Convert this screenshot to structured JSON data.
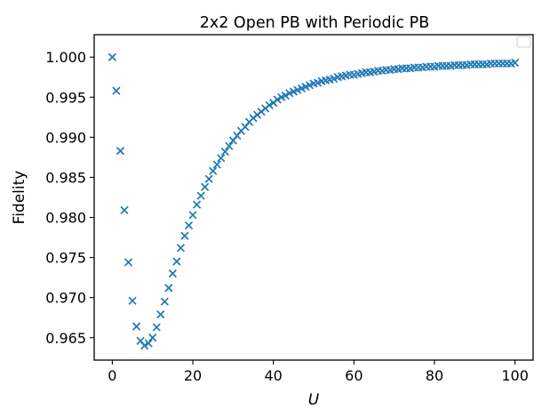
{
  "chart_data": {
    "type": "scatter",
    "title": "2x2 Open PB with Periodic PB",
    "xlabel": "U",
    "ylabel": "Fidelity",
    "xlim": [
      -4.5,
      104.5
    ],
    "ylim": [
      0.9622,
      1.0028
    ],
    "xticks": [
      0,
      20,
      40,
      60,
      80,
      100
    ],
    "xtick_labels": [
      "0",
      "20",
      "40",
      "60",
      "80",
      "100"
    ],
    "yticks": [
      0.965,
      0.97,
      0.975,
      0.98,
      0.985,
      0.99,
      0.995,
      1.0
    ],
    "ytick_labels": [
      "0.965",
      "0.970",
      "0.975",
      "0.980",
      "0.985",
      "0.990",
      "0.995",
      "1.000"
    ],
    "grid": false,
    "legend": "top-right",
    "marker": "x",
    "colors": {
      "series": "#1f77b4",
      "axes": "#000000",
      "background": "#ffffff",
      "legend_border": "#cccccc"
    },
    "series": [
      {
        "x": [
          0,
          1,
          2,
          3,
          4,
          5,
          6,
          7,
          8,
          9,
          10,
          11,
          12,
          13,
          14,
          15,
          16,
          17,
          18,
          19,
          20,
          21,
          22,
          23,
          24,
          25,
          26,
          27,
          28,
          29,
          30,
          31,
          32,
          33,
          34,
          35,
          36,
          37,
          38,
          39,
          40,
          41,
          42,
          43,
          44,
          45,
          46,
          47,
          48,
          49,
          50,
          51,
          52,
          53,
          54,
          55,
          56,
          57,
          58,
          59,
          60,
          61,
          62,
          63,
          64,
          65,
          66,
          67,
          68,
          69,
          70,
          71,
          72,
          73,
          74,
          75,
          76,
          77,
          78,
          79,
          80,
          81,
          82,
          83,
          84,
          85,
          86,
          87,
          88,
          89,
          90,
          91,
          92,
          93,
          94,
          95,
          96,
          97,
          98,
          99,
          100
        ],
        "values": [
          1.0,
          0.9958,
          0.9883,
          0.9809,
          0.9744,
          0.9696,
          0.9664,
          0.9646,
          0.964,
          0.9643,
          0.965,
          0.9663,
          0.9679,
          0.9695,
          0.9712,
          0.973,
          0.9745,
          0.9762,
          0.9777,
          0.979,
          0.9803,
          0.9816,
          0.9827,
          0.9838,
          0.9848,
          0.9858,
          0.9866,
          0.9874,
          0.9882,
          0.9889,
          0.9896,
          0.9902,
          0.9908,
          0.9913,
          0.9919,
          0.9924,
          0.9928,
          0.9932,
          0.9936,
          0.994,
          0.9943,
          0.9947,
          0.995,
          0.9952,
          0.9955,
          0.9957,
          0.9959,
          0.9961,
          0.9963,
          0.9965,
          0.9967,
          0.9968,
          0.997,
          0.9971,
          0.9972,
          0.9973,
          0.9975,
          0.9976,
          0.9977,
          0.9978,
          0.9978,
          0.9979,
          0.998,
          0.9981,
          0.9981,
          0.9982,
          0.9983,
          0.9983,
          0.9984,
          0.9984,
          0.9985,
          0.9985,
          0.9986,
          0.9986,
          0.9986,
          0.9987,
          0.9987,
          0.9987,
          0.9988,
          0.9988,
          0.9988,
          0.9989,
          0.9989,
          0.9989,
          0.9989,
          0.999,
          0.999,
          0.999,
          0.999,
          0.9991,
          0.9991,
          0.9991,
          0.9991,
          0.9991,
          0.9992,
          0.9992,
          0.9992,
          0.9992,
          0.9992,
          0.9992,
          0.9993
        ]
      }
    ]
  }
}
